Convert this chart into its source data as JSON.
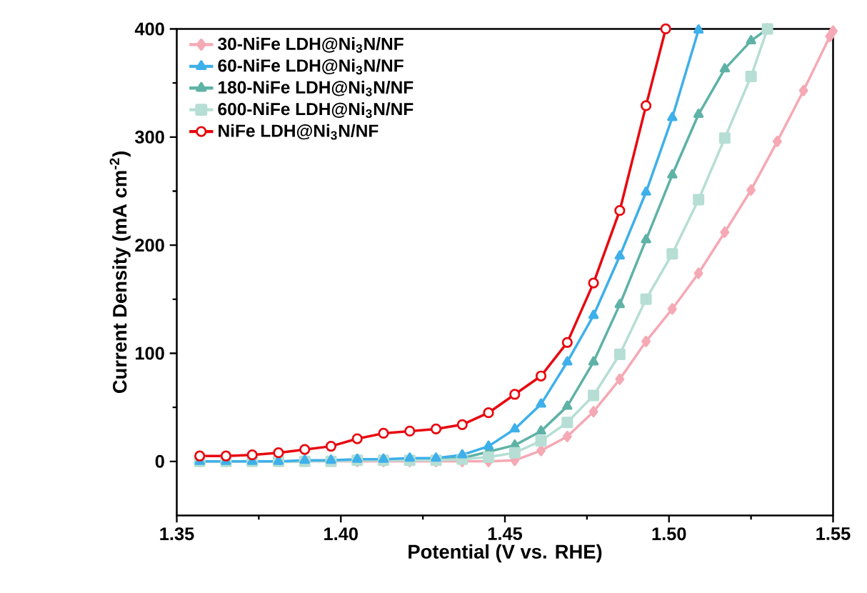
{
  "chart_data": {
    "type": "line",
    "xlabel": "Potential (V vs. RHE)",
    "ylabel": "Current Density (mA cm$^{-2}$)",
    "xlim": [
      1.35,
      1.55
    ],
    "ylim": [
      -50,
      400
    ],
    "xticks": [
      {
        "value": 1.35,
        "label": "1.35"
      },
      {
        "value": 1.4,
        "label": "1.40"
      },
      {
        "value": 1.45,
        "label": "1.45"
      },
      {
        "value": 1.5,
        "label": "1.50"
      },
      {
        "value": 1.55,
        "label": "1.55"
      }
    ],
    "yticks": [
      0,
      100,
      200,
      300,
      400
    ],
    "legend": "top left",
    "grid": false,
    "line_style": "solid",
    "series": [
      {
        "name": "30-NiFe LDH@Ni$_{3}$N/NF",
        "color": "#f5a9b4",
        "marker": "diamond",
        "x": [
          1.357,
          1.365,
          1.373,
          1.381,
          1.389,
          1.397,
          1.405,
          1.413,
          1.421,
          1.429,
          1.437,
          1.445,
          1.453,
          1.461,
          1.469,
          1.477,
          1.485,
          1.493,
          1.501,
          1.509,
          1.517,
          1.525,
          1.533,
          1.541,
          1.549,
          1.55
        ],
        "values": [
          0,
          0,
          0,
          0,
          0,
          0,
          0,
          0,
          0,
          0,
          0,
          0,
          1,
          10,
          23,
          46,
          76,
          111,
          141,
          174,
          212,
          251,
          296,
          343,
          393,
          398
        ]
      },
      {
        "name": "60-NiFe LDH@Ni$_{3}$N/NF",
        "color": "#3eb0ea",
        "marker": "triangle",
        "x": [
          1.357,
          1.365,
          1.373,
          1.381,
          1.389,
          1.397,
          1.405,
          1.413,
          1.421,
          1.429,
          1.437,
          1.445,
          1.453,
          1.461,
          1.469,
          1.477,
          1.485,
          1.493,
          1.501,
          1.509
        ],
        "values": [
          0,
          0,
          0,
          0,
          1,
          1,
          2,
          2,
          3,
          3,
          6,
          14,
          30,
          53,
          92,
          135,
          190,
          249,
          318,
          399
        ]
      },
      {
        "name": "180-NiFe LDH@Ni$_{3}$N/NF",
        "color": "#5eb2a6",
        "marker": "triangle",
        "x": [
          1.357,
          1.365,
          1.373,
          1.381,
          1.389,
          1.397,
          1.405,
          1.413,
          1.421,
          1.429,
          1.437,
          1.445,
          1.453,
          1.461,
          1.469,
          1.477,
          1.485,
          1.493,
          1.501,
          1.509,
          1.517,
          1.525,
          1.53
        ],
        "values": [
          0,
          0,
          0,
          0,
          0,
          1,
          1,
          1,
          2,
          2,
          3,
          9,
          15,
          28,
          51,
          92,
          145,
          205,
          265,
          321,
          363,
          389,
          400
        ]
      },
      {
        "name": "600-NiFe LDH@Ni$_{3}$N/NF",
        "color": "#b6ded4",
        "marker": "square",
        "x": [
          1.357,
          1.365,
          1.373,
          1.381,
          1.389,
          1.397,
          1.405,
          1.413,
          1.421,
          1.429,
          1.437,
          1.445,
          1.453,
          1.461,
          1.469,
          1.477,
          1.485,
          1.493,
          1.501,
          1.509,
          1.517,
          1.525,
          1.53
        ],
        "values": [
          0,
          0,
          0,
          0,
          0,
          0,
          1,
          1,
          1,
          1,
          2,
          4,
          8,
          19,
          36,
          61,
          99,
          150,
          192,
          242,
          299,
          356,
          400
        ]
      },
      {
        "name": "NiFe LDH@Ni$_{3}$N/NF",
        "color": "#e8080f",
        "marker": "circle",
        "x": [
          1.357,
          1.365,
          1.373,
          1.381,
          1.389,
          1.397,
          1.405,
          1.413,
          1.421,
          1.429,
          1.437,
          1.445,
          1.453,
          1.461,
          1.469,
          1.477,
          1.485,
          1.493,
          1.499
        ],
        "values": [
          5,
          5,
          6,
          8,
          11,
          14,
          21,
          26,
          28,
          30,
          34,
          45,
          62,
          79,
          110,
          165,
          232,
          329,
          400
        ]
      }
    ]
  }
}
